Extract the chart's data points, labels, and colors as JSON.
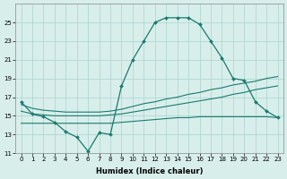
{
  "xlabel": "Humidex (Indice chaleur)",
  "x_values": [
    0,
    1,
    2,
    3,
    4,
    5,
    6,
    7,
    8,
    9,
    10,
    11,
    12,
    13,
    14,
    15,
    16,
    17,
    18,
    19,
    20,
    21,
    22,
    23
  ],
  "main_curve_x": [
    0,
    1,
    2,
    3,
    4,
    5,
    6,
    7,
    8,
    9,
    10,
    11,
    12,
    13,
    14,
    15,
    16,
    17,
    18,
    19,
    20,
    21,
    22,
    23
  ],
  "main_curve_y": [
    16.5,
    15.2,
    14.9,
    14.3,
    13.3,
    12.7,
    11.2,
    13.2,
    13.0,
    18.2,
    21.0,
    23.0,
    25.0,
    25.5,
    25.5,
    25.5,
    24.8,
    23.0,
    21.2,
    19.0,
    18.8,
    16.5,
    15.5,
    14.8
  ],
  "upper_band_x": [
    0,
    1,
    2,
    3,
    4,
    5,
    6,
    7,
    8,
    9,
    10,
    11,
    12,
    13,
    14,
    15,
    16,
    17,
    18,
    19,
    20,
    21,
    22,
    23
  ],
  "upper_band_y": [
    16.2,
    15.8,
    15.6,
    15.5,
    15.4,
    15.4,
    15.4,
    15.4,
    15.5,
    15.7,
    16.0,
    16.3,
    16.5,
    16.8,
    17.0,
    17.3,
    17.5,
    17.8,
    18.0,
    18.3,
    18.5,
    18.7,
    19.0,
    19.2
  ],
  "mid_band_x": [
    0,
    1,
    2,
    3,
    4,
    5,
    6,
    7,
    8,
    9,
    10,
    11,
    12,
    13,
    14,
    15,
    16,
    17,
    18,
    19,
    20,
    21,
    22,
    23
  ],
  "mid_band_y": [
    15.5,
    15.2,
    15.1,
    15.0,
    15.0,
    15.0,
    15.0,
    15.0,
    15.1,
    15.2,
    15.4,
    15.6,
    15.8,
    16.0,
    16.2,
    16.4,
    16.6,
    16.8,
    17.0,
    17.3,
    17.5,
    17.8,
    18.0,
    18.2
  ],
  "lower_band_x": [
    0,
    1,
    2,
    3,
    4,
    5,
    6,
    7,
    8,
    9,
    10,
    11,
    12,
    13,
    14,
    15,
    16,
    17,
    18,
    19,
    20,
    21,
    22,
    23
  ],
  "lower_band_y": [
    14.2,
    14.2,
    14.2,
    14.2,
    14.2,
    14.2,
    14.2,
    14.2,
    14.2,
    14.3,
    14.4,
    14.5,
    14.6,
    14.7,
    14.8,
    14.8,
    14.9,
    14.9,
    14.9,
    14.9,
    14.9,
    14.9,
    14.9,
    14.8
  ],
  "color": "#1a7a6e",
  "bg_color": "#d8eeeb",
  "grid_color": "#a8d4ce",
  "ylim": [
    11,
    27
  ],
  "xlim": [
    -0.5,
    23.5
  ],
  "yticks": [
    11,
    13,
    15,
    17,
    19,
    21,
    23,
    25
  ],
  "xticks": [
    0,
    1,
    2,
    3,
    4,
    5,
    6,
    7,
    8,
    9,
    10,
    11,
    12,
    13,
    14,
    15,
    16,
    17,
    18,
    19,
    20,
    21,
    22,
    23
  ],
  "tick_fontsize": 5.0,
  "xlabel_fontsize": 6.0
}
